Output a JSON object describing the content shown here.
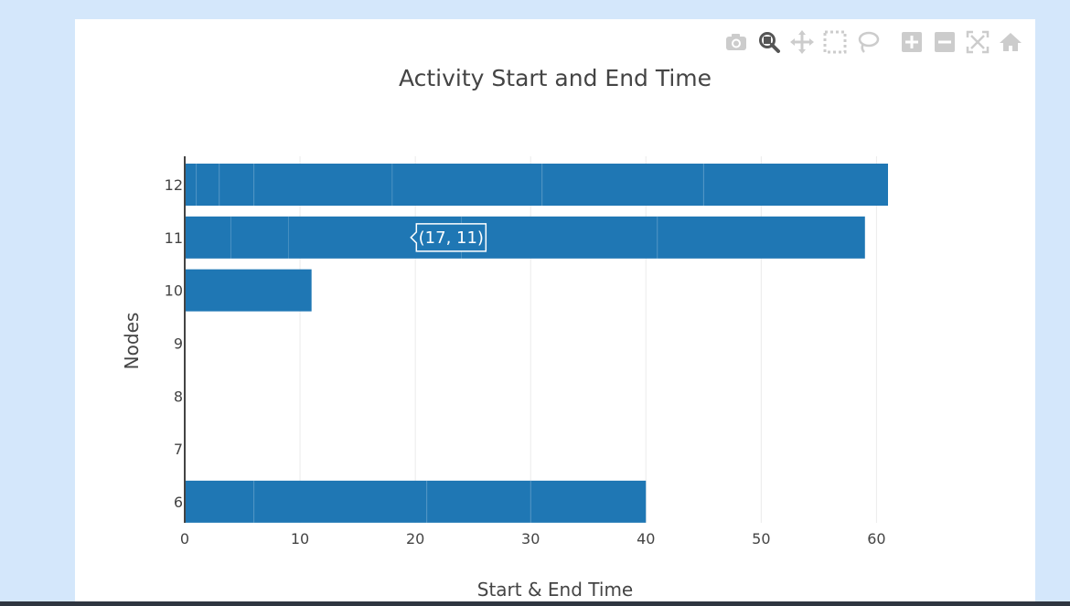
{
  "toolbar": {
    "icons": [
      "camera-icon",
      "zoom-icon",
      "pan-icon",
      "box-select-icon",
      "lasso-select-icon",
      "zoom-in-icon",
      "zoom-out-icon",
      "autoscale-icon",
      "reset-axes-icon"
    ]
  },
  "colors": {
    "bar": "#1f77b4",
    "page_background": "#d4e7fb",
    "card": "#ffffff"
  },
  "tooltip": {
    "text": "(17, 11)",
    "x": 17,
    "y": 11
  },
  "chart_data": {
    "type": "bar",
    "orientation": "horizontal",
    "title": "Activity Start and End Time",
    "xlabel": "Start & End Time",
    "ylabel": "Nodes",
    "xlim": [
      0,
      61
    ],
    "ylim": [
      5.6,
      12.45
    ],
    "xticks": [
      0,
      10,
      20,
      30,
      40,
      50,
      60
    ],
    "yticks": [
      6,
      7,
      8,
      9,
      10,
      11,
      12
    ],
    "grid": true,
    "bars": [
      {
        "node": 12,
        "end": 61,
        "segments": [
          0,
          1,
          3,
          6,
          18,
          31,
          45,
          61
        ]
      },
      {
        "node": 11,
        "end": 59,
        "segments": [
          0,
          4,
          9,
          24,
          41,
          59
        ]
      },
      {
        "node": 10,
        "end": 11,
        "segments": [
          0,
          11
        ]
      },
      {
        "node": 6,
        "end": 40,
        "segments": [
          0,
          6,
          21,
          30,
          40
        ]
      }
    ]
  }
}
